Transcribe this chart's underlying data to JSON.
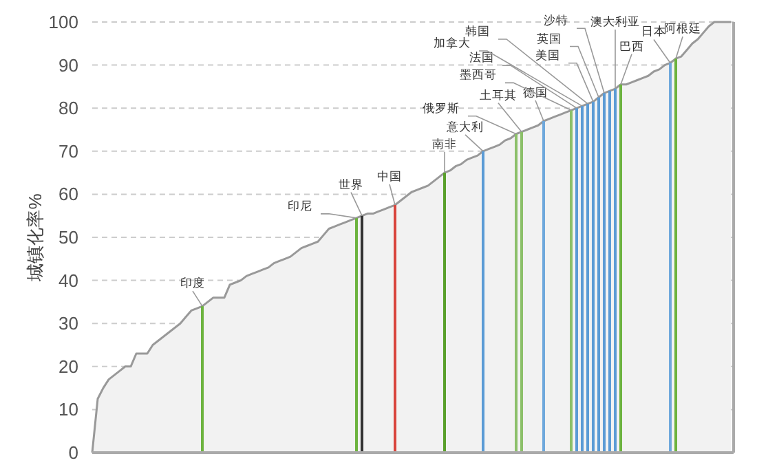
{
  "chart_data": {
    "type": "area",
    "ylabel": "城镇化率%",
    "categories": [
      null,
      null,
      null,
      null,
      null,
      null,
      null,
      null,
      null,
      null,
      null,
      null,
      null,
      null,
      null,
      null,
      null,
      null,
      null,
      null,
      null,
      null,
      null,
      null,
      null,
      null,
      null,
      null,
      null,
      null,
      null,
      null,
      null,
      null,
      null,
      null,
      null,
      null,
      null,
      null,
      null,
      null,
      null,
      null,
      null,
      null,
      null,
      null,
      null,
      null,
      null,
      null,
      null,
      null,
      null,
      null,
      null,
      null,
      null,
      null,
      null,
      null,
      null,
      null,
      null,
      null,
      null,
      null,
      null,
      null,
      null,
      null,
      null,
      null,
      null,
      null,
      null,
      null,
      null,
      null,
      null,
      null,
      null,
      null,
      null,
      null,
      null,
      null,
      null,
      null,
      null,
      null,
      null,
      null,
      null,
      null,
      null,
      null,
      null,
      null,
      null,
      null,
      null,
      null,
      null,
      null,
      null,
      null,
      null,
      null,
      null,
      null,
      null,
      null,
      null,
      null,
      null
    ],
    "ylim": [
      0,
      100
    ],
    "yticks": [
      0,
      10,
      20,
      30,
      40,
      50,
      60,
      70,
      80,
      90,
      100
    ],
    "grid": "y",
    "series": [
      {
        "color": "#999999",
        "values": [
          0,
          12.5,
          15,
          17,
          18,
          19,
          20,
          20,
          23,
          23,
          23,
          25,
          26,
          27,
          28,
          29,
          30,
          31.5,
          33,
          33.5,
          34,
          35,
          36,
          36,
          36,
          39,
          39.5,
          40,
          41,
          41.5,
          42,
          42.5,
          43,
          44,
          44.5,
          45,
          45.5,
          46.5,
          47.5,
          48,
          48.5,
          49,
          50.5,
          52,
          52.5,
          53,
          53.5,
          54,
          54.5,
          55,
          55.5,
          55.5,
          56,
          56.5,
          57,
          57.5,
          58.5,
          59.5,
          60.5,
          61,
          61.5,
          62,
          63,
          64,
          65,
          65.5,
          66.5,
          67,
          68,
          68.5,
          69,
          70,
          70.5,
          71,
          71.5,
          72.5,
          73,
          74,
          74.5,
          75,
          75.5,
          76,
          77,
          77.5,
          78,
          78.5,
          79,
          79.5,
          80,
          80.5,
          81,
          81.5,
          82.5,
          83.5,
          84,
          84.5,
          85.5,
          85.5,
          86,
          86.5,
          87,
          87.5,
          88.5,
          89,
          90,
          90.5,
          91.5,
          92,
          93.5,
          95,
          96,
          97.5,
          99,
          100,
          100,
          100,
          100
        ]
      },
      {
        "type": "bar",
        "values": [
          null,
          null,
          null,
          null,
          null,
          null,
          null,
          null,
          null,
          null,
          null,
          null,
          null,
          null,
          null,
          null,
          null,
          null,
          null,
          null,
          34,
          null,
          null,
          null,
          null,
          null,
          null,
          null,
          null,
          null,
          null,
          null,
          null,
          null,
          null,
          null,
          null,
          null,
          null,
          null,
          null,
          null,
          null,
          null,
          null,
          null,
          null,
          null,
          54.5,
          55,
          null,
          null,
          null,
          null,
          null,
          57.5,
          null,
          null,
          null,
          null,
          null,
          null,
          null,
          null,
          65,
          null,
          null,
          null,
          null,
          null,
          null,
          70,
          null,
          null,
          null,
          null,
          null,
          74,
          74.5,
          null,
          null,
          null,
          77,
          null,
          null,
          null,
          null,
          79.5,
          80,
          80.5,
          81,
          81.5,
          82.5,
          83.5,
          84,
          84.5,
          85.5,
          null,
          null,
          null,
          null,
          null,
          null,
          null,
          null,
          90.5,
          91.5,
          null,
          null,
          null,
          null,
          null,
          null,
          null,
          null,
          null,
          null
        ],
        "colors": [
          null,
          null,
          null,
          null,
          null,
          null,
          null,
          null,
          null,
          null,
          null,
          null,
          null,
          null,
          null,
          null,
          null,
          null,
          null,
          null,
          "#6db33f",
          null,
          null,
          null,
          null,
          null,
          null,
          null,
          null,
          null,
          null,
          null,
          null,
          null,
          null,
          null,
          null,
          null,
          null,
          null,
          null,
          null,
          null,
          null,
          null,
          null,
          null,
          null,
          "#6db33f",
          "#333333",
          null,
          null,
          null,
          null,
          null,
          "#d9453d",
          null,
          null,
          null,
          null,
          null,
          null,
          null,
          null,
          "#5aa02c",
          null,
          null,
          null,
          null,
          null,
          null,
          "#5b9bd5",
          null,
          null,
          null,
          null,
          null,
          "#8cc06a",
          "#8cc06a",
          null,
          null,
          null,
          "#6fa8dc",
          null,
          null,
          null,
          null,
          "#8cc06a",
          "#5b9bd5",
          "#5b9bd5",
          "#5b9bd5",
          "#5b9bd5",
          "#5b9bd5",
          "#5b9bd5",
          "#5b9bd5",
          "#5b9bd5",
          "#6db33f",
          null,
          null,
          null,
          null,
          null,
          null,
          null,
          null,
          "#6fa8dc",
          "#6db33f",
          null,
          null,
          null,
          null,
          null,
          null,
          null,
          null,
          null,
          null
        ],
        "value_labels": [
          null,
          null,
          null,
          null,
          null,
          null,
          null,
          null,
          null,
          null,
          null,
          null,
          null,
          null,
          null,
          null,
          null,
          null,
          null,
          null,
          "印度",
          null,
          null,
          null,
          null,
          null,
          null,
          null,
          null,
          null,
          null,
          null,
          null,
          null,
          null,
          null,
          null,
          null,
          null,
          null,
          null,
          null,
          null,
          null,
          null,
          null,
          null,
          null,
          "印尼",
          "世界",
          null,
          null,
          null,
          null,
          null,
          "中国",
          null,
          null,
          null,
          null,
          null,
          null,
          null,
          null,
          "南非",
          null,
          null,
          null,
          null,
          null,
          null,
          "意大利",
          null,
          null,
          null,
          null,
          null,
          "俄罗斯",
          "土耳其",
          null,
          null,
          null,
          "德国",
          null,
          null,
          null,
          null,
          "墨西哥",
          "法国",
          "加拿大",
          "韩国",
          "美国",
          "英国",
          "沙特",
          null,
          "澳大利亚",
          "巴西",
          null,
          null,
          null,
          null,
          null,
          null,
          null,
          null,
          "日本",
          "阿根廷",
          null,
          null,
          null,
          null,
          null,
          null,
          null,
          null,
          null,
          null
        ]
      }
    ]
  }
}
